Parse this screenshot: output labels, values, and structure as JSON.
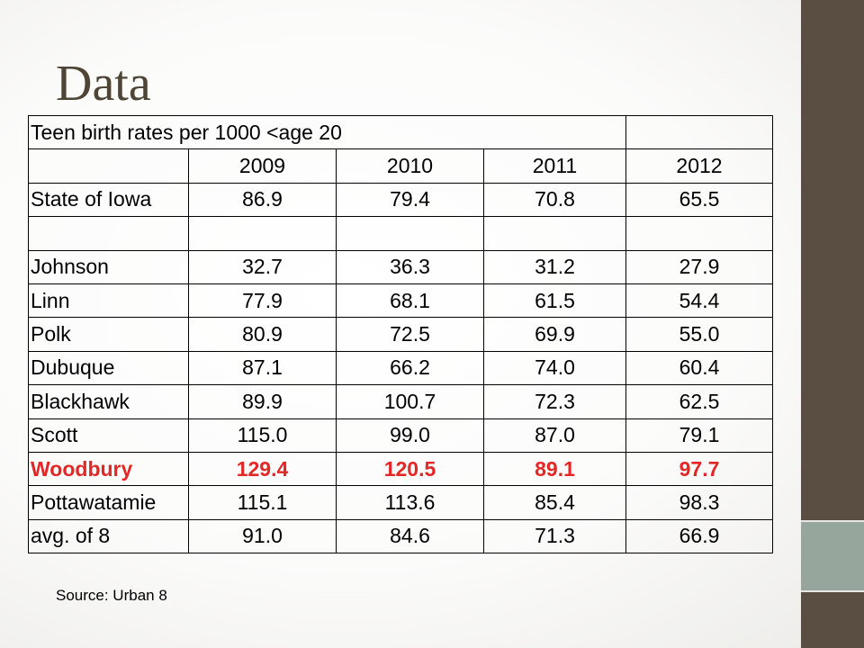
{
  "slide": {
    "title": "Data",
    "source": "Source: Urban 8"
  },
  "table": {
    "header": "Teen birth rates per 1000 <age 20",
    "years": [
      "2009",
      "2010",
      "2011",
      "2012"
    ],
    "state_row": {
      "label": "State of Iowa",
      "values": [
        "86.9",
        "79.4",
        "70.8",
        "65.5"
      ]
    },
    "rows": [
      {
        "label": "Johnson",
        "values": [
          "32.7",
          "36.3",
          "31.2",
          "27.9"
        ]
      },
      {
        "label": "Linn",
        "values": [
          "77.9",
          "68.1",
          "61.5",
          "54.4"
        ]
      },
      {
        "label": "Polk",
        "values": [
          "80.9",
          "72.5",
          "69.9",
          "55.0"
        ]
      },
      {
        "label": "Dubuque",
        "values": [
          "87.1",
          "66.2",
          "74.0",
          "60.4"
        ]
      },
      {
        "label": "Blackhawk",
        "values": [
          "89.9",
          "100.7",
          "72.3",
          "62.5"
        ]
      },
      {
        "label": "Scott",
        "values": [
          "115.0",
          "99.0",
          "87.0",
          "79.1"
        ]
      },
      {
        "label": "Woodbury",
        "values": [
          "129.4",
          "120.5",
          "89.1",
          "97.7"
        ]
      },
      {
        "label": "Pottawatamie",
        "values": [
          "115.1",
          "113.6",
          "85.4",
          "98.3"
        ]
      },
      {
        "label": "avg. of 8",
        "values": [
          "91.0",
          "84.6",
          "71.3",
          "66.9"
        ]
      }
    ],
    "highlight_row": "Woodbury",
    "highlight_color": "#e32626"
  },
  "colors": {
    "sidebar_dark": "#5a4e42",
    "sidebar_accent": "#97a69c",
    "title_color": "#4f4536"
  }
}
